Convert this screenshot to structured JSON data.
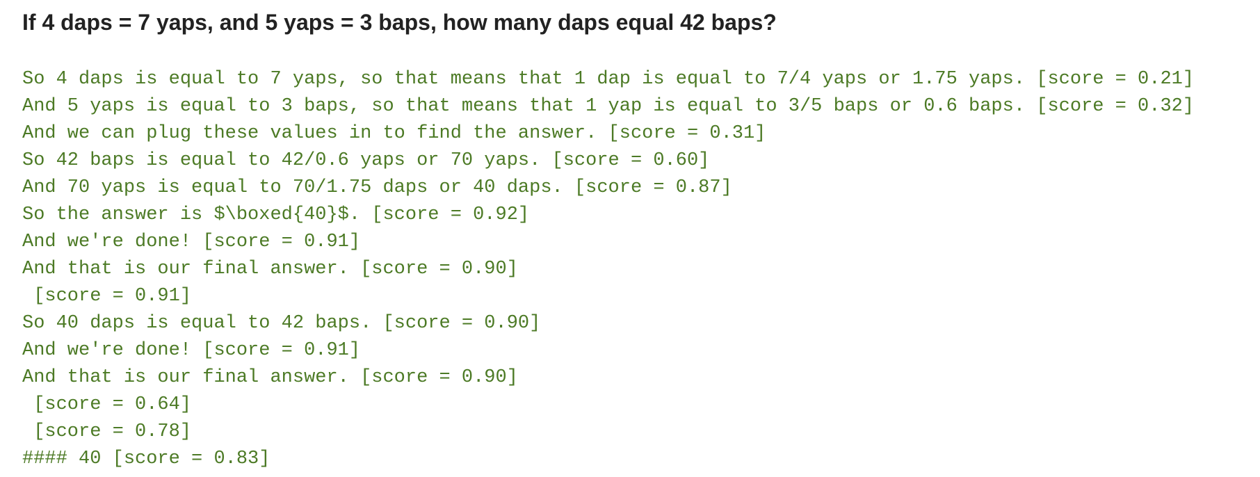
{
  "question": "If 4 daps = 7 yaps, and 5 yaps = 3 baps, how many daps equal 42 baps?",
  "steps": [
    "So 4 daps is equal to 7 yaps, so that means that 1 dap is equal to 7/4 yaps or 1.75 yaps. [score = 0.21]",
    "And 5 yaps is equal to 3 baps, so that means that 1 yap is equal to 3/5 baps or 0.6 baps. [score = 0.32]",
    "And we can plug these values in to find the answer. [score = 0.31]",
    "So 42 baps is equal to 42/0.6 yaps or 70 yaps. [score = 0.60]",
    "And 70 yaps is equal to 70/1.75 daps or 40 daps. [score = 0.87]",
    "So the answer is $\\boxed{40}$. [score = 0.92]",
    "And we're done! [score = 0.91]",
    "And that is our final answer. [score = 0.90]",
    " [score = 0.91]",
    "So 40 daps is equal to 42 baps. [score = 0.90]",
    "And we're done! [score = 0.91]",
    "And that is our final answer. [score = 0.90]",
    " [score = 0.64]",
    " [score = 0.78]",
    "#### 40 [score = 0.83]"
  ]
}
